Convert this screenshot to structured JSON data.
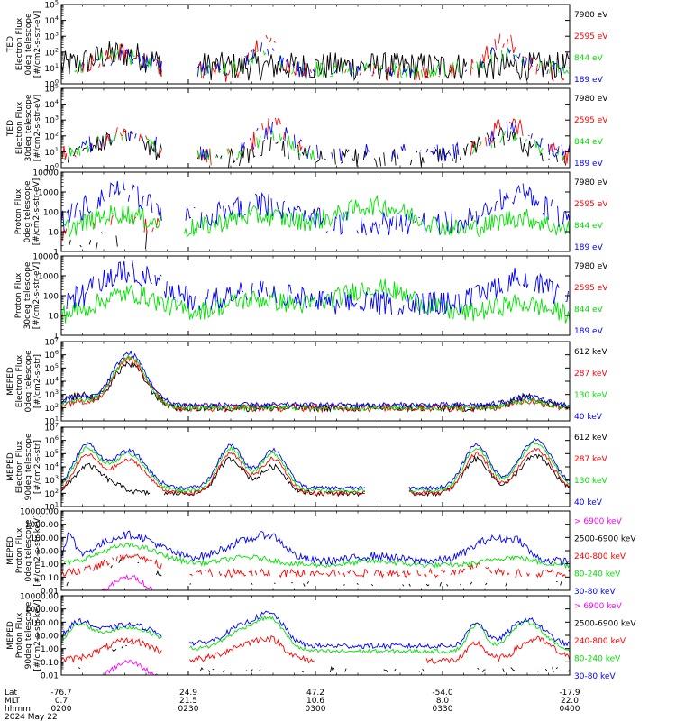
{
  "colors": {
    "black": "#000000",
    "red": "#ff0000",
    "green": "#00e000",
    "blue": "#0000ff",
    "magenta": "#ff00ff"
  },
  "chart_data": [
    {
      "type": "line",
      "ylabel": [
        "TED",
        "Electron Flux",
        "0deg telescope",
        "[#/cm2-s-str-eV]"
      ],
      "yscale": "log",
      "ytick_labels": [
        "10^0",
        "10^1",
        "10^2",
        "10^3",
        "10^4",
        "10^5"
      ],
      "ylim": [
        1,
        100000
      ],
      "legend": [
        {
          "label": "7980 eV",
          "color": "#000000"
        },
        {
          "label": "2595 eV",
          "color": "#ff0000"
        },
        {
          "label": "844 eV",
          "color": "#00e000"
        },
        {
          "label": "189 eV",
          "color": "#0000ff"
        }
      ]
    },
    {
      "type": "line",
      "ylabel": [
        "TED",
        "Electron Flux",
        "30deg telescope",
        "[#/cm2-s-str-eV]"
      ],
      "yscale": "log",
      "ytick_labels": [
        "10^0",
        "10^1",
        "10^2",
        "10^3",
        "10^4",
        "10^5"
      ],
      "ylim": [
        1,
        100000
      ],
      "legend": [
        {
          "label": "7980 eV",
          "color": "#000000"
        },
        {
          "label": "2595 eV",
          "color": "#ff0000"
        },
        {
          "label": "844 eV",
          "color": "#00e000"
        },
        {
          "label": "189 eV",
          "color": "#0000ff"
        }
      ]
    },
    {
      "type": "line",
      "ylabel": [
        "Proton Flux",
        "0deg telescope",
        "[#/cm2-s-str-eV]"
      ],
      "yscale": "log",
      "ytick_labels": [
        "1",
        "10",
        "100",
        "1000",
        "10000"
      ],
      "ylim": [
        1,
        10000
      ],
      "legend": [
        {
          "label": "7980 eV",
          "color": "#000000"
        },
        {
          "label": "2595 eV",
          "color": "#ff0000"
        },
        {
          "label": "844 eV",
          "color": "#00e000"
        },
        {
          "label": "189 eV",
          "color": "#0000ff"
        }
      ]
    },
    {
      "type": "line",
      "ylabel": [
        "Proton Flux",
        "30deg telescope",
        "[#/cm2-s-str-eV]"
      ],
      "yscale": "log",
      "ytick_labels": [
        "1",
        "10",
        "100",
        "1000",
        "10000"
      ],
      "ylim": [
        1,
        10000
      ],
      "legend": [
        {
          "label": "7980 eV",
          "color": "#000000"
        },
        {
          "label": "2595 eV",
          "color": "#ff0000"
        },
        {
          "label": "844 eV",
          "color": "#00e000"
        },
        {
          "label": "189 eV",
          "color": "#0000ff"
        }
      ]
    },
    {
      "type": "line",
      "ylabel": [
        "MEPED",
        "Electron Flux",
        "0deg telescope",
        "[#/cm2-s-str]"
      ],
      "yscale": "log",
      "ytick_labels": [
        "10^1",
        "10^2",
        "10^3",
        "10^4",
        "10^5",
        "10^6",
        "10^7"
      ],
      "ylim": [
        10,
        10000000
      ],
      "legend": [
        {
          "label": "612 keV",
          "color": "#000000"
        },
        {
          "label": "287 keV",
          "color": "#ff0000"
        },
        {
          "label": "130 keV",
          "color": "#00e000"
        },
        {
          "label": "40 keV",
          "color": "#0000ff"
        }
      ]
    },
    {
      "type": "line",
      "ylabel": [
        "MEPED",
        "Electron Flux",
        "90deg telescope",
        "[#/cm2-s-str]"
      ],
      "yscale": "log",
      "ytick_labels": [
        "10^1",
        "10^2",
        "10^3",
        "10^4",
        "10^5",
        "10^6",
        "10^7"
      ],
      "ylim": [
        10,
        10000000
      ],
      "legend": [
        {
          "label": "612 keV",
          "color": "#000000"
        },
        {
          "label": "287 keV",
          "color": "#ff0000"
        },
        {
          "label": "130 keV",
          "color": "#00e000"
        },
        {
          "label": "40 keV",
          "color": "#0000ff"
        }
      ]
    },
    {
      "type": "line",
      "ylabel": [
        "MEPED",
        "Proton Flux",
        "0deg telescope",
        "[#/cm2-s-str-keV]"
      ],
      "yscale": "log",
      "ytick_labels": [
        "0.01",
        "0.10",
        "1.00",
        "10.00",
        "100.00",
        "1000.00",
        "10000.00"
      ],
      "ylim": [
        0.01,
        10000
      ],
      "legend": [
        {
          "label": "> 6900 keV",
          "color": "#ff00ff"
        },
        {
          "label": "2500-6900 keV",
          "color": "#000000"
        },
        {
          "label": "240-800 keV",
          "color": "#ff0000"
        },
        {
          "label": "80-240 keV",
          "color": "#00e000"
        },
        {
          "label": "30-80 keV",
          "color": "#0000ff"
        }
      ]
    },
    {
      "type": "line",
      "ylabel": [
        "MEPED",
        "Proton Flux",
        "90deg telescope",
        "[#/cm2-s-str-keV]"
      ],
      "yscale": "log",
      "ytick_labels": [
        "0.01",
        "0.10",
        "1.00",
        "10.00",
        "100.00",
        "1000.00",
        "10000.00"
      ],
      "ylim": [
        0.01,
        10000
      ],
      "legend": [
        {
          "label": "> 6900 keV",
          "color": "#ff00ff"
        },
        {
          "label": "2500-6900 keV",
          "color": "#000000"
        },
        {
          "label": "240-800 keV",
          "color": "#ff0000"
        },
        {
          "label": "80-240 keV",
          "color": "#00e000"
        },
        {
          "label": "30-80 keV",
          "color": "#0000ff"
        }
      ]
    }
  ],
  "xaxis": {
    "row_labels": [
      "Lat",
      "MLT",
      "hhmm",
      "2024 May 22"
    ],
    "ticks": [
      {
        "lat": "-76.7",
        "mlt": "0.7",
        "hhmm": "0200"
      },
      {
        "lat": "24.9",
        "mlt": "21.5",
        "hhmm": "0230"
      },
      {
        "lat": "47.2",
        "mlt": "10.6",
        "hhmm": "0300"
      },
      {
        "lat": "-54.0",
        "mlt": "8.0",
        "hhmm": "0330"
      },
      {
        "lat": "-17.9",
        "mlt": "22.0",
        "hhmm": "0400"
      }
    ]
  }
}
